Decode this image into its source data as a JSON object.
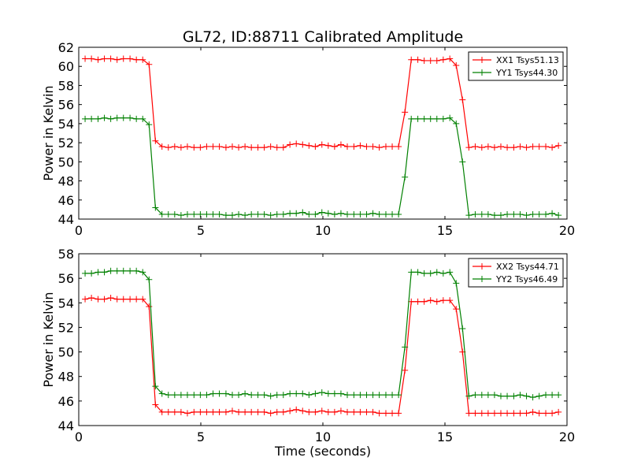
{
  "chart_data": [
    {
      "type": "line",
      "title": "GL72, ID:88711 Calibrated Amplitude",
      "xlabel": "",
      "ylabel": "Power in Kelvin",
      "xlim": [
        0,
        20
      ],
      "ylim": [
        44,
        62
      ],
      "xticks": [
        "0",
        "5",
        "10",
        "15",
        "20"
      ],
      "yticks": [
        "44",
        "46",
        "48",
        "50",
        "52",
        "54",
        "56",
        "58",
        "60",
        "62"
      ],
      "grid": false,
      "legend_position": "top-right",
      "x": [
        0.26,
        0.52,
        0.79,
        1.05,
        1.31,
        1.57,
        1.83,
        2.1,
        2.36,
        2.62,
        2.88,
        3.14,
        3.41,
        3.67,
        3.93,
        4.19,
        4.45,
        4.72,
        4.98,
        5.24,
        5.5,
        5.76,
        6.03,
        6.29,
        6.55,
        6.81,
        7.07,
        7.34,
        7.6,
        7.86,
        8.12,
        8.38,
        8.65,
        8.91,
        9.17,
        9.43,
        9.69,
        9.96,
        10.22,
        10.48,
        10.74,
        11.0,
        11.27,
        11.53,
        11.79,
        12.05,
        12.31,
        12.58,
        12.84,
        13.1,
        13.36,
        13.62,
        13.89,
        14.15,
        14.41,
        14.67,
        14.93,
        15.2,
        15.46,
        15.72,
        15.98,
        16.24,
        16.51,
        16.77,
        17.03,
        17.29,
        17.55,
        17.82,
        18.08,
        18.34,
        18.6,
        18.86,
        19.13,
        19.39,
        19.65
      ],
      "series": [
        {
          "name": "XX1 Tsys51.13",
          "color": "#ff0000",
          "values": [
            60.8,
            60.8,
            60.7,
            60.8,
            60.8,
            60.7,
            60.8,
            60.8,
            60.7,
            60.7,
            60.2,
            52.2,
            51.6,
            51.5,
            51.6,
            51.5,
            51.6,
            51.5,
            51.5,
            51.6,
            51.6,
            51.6,
            51.5,
            51.6,
            51.5,
            51.6,
            51.5,
            51.5,
            51.5,
            51.6,
            51.5,
            51.5,
            51.8,
            51.9,
            51.8,
            51.7,
            51.6,
            51.8,
            51.7,
            51.6,
            51.8,
            51.6,
            51.6,
            51.7,
            51.6,
            51.6,
            51.5,
            51.6,
            51.6,
            51.6,
            55.2,
            60.7,
            60.7,
            60.6,
            60.6,
            60.6,
            60.7,
            60.8,
            60.1,
            56.5,
            51.5,
            51.6,
            51.5,
            51.6,
            51.5,
            51.6,
            51.5,
            51.5,
            51.6,
            51.5,
            51.6,
            51.6,
            51.6,
            51.5,
            51.7
          ]
        },
        {
          "name": "YY1 Tsys44.30",
          "color": "#008000",
          "values": [
            54.5,
            54.5,
            54.5,
            54.6,
            54.5,
            54.6,
            54.6,
            54.6,
            54.5,
            54.5,
            53.9,
            45.2,
            44.5,
            44.5,
            44.5,
            44.4,
            44.5,
            44.5,
            44.5,
            44.5,
            44.5,
            44.5,
            44.4,
            44.4,
            44.5,
            44.4,
            44.5,
            44.5,
            44.5,
            44.4,
            44.5,
            44.5,
            44.6,
            44.6,
            44.7,
            44.5,
            44.5,
            44.7,
            44.6,
            44.5,
            44.6,
            44.5,
            44.5,
            44.5,
            44.5,
            44.6,
            44.5,
            44.5,
            44.5,
            44.5,
            48.4,
            54.5,
            54.5,
            54.5,
            54.5,
            54.5,
            54.5,
            54.6,
            54.0,
            50.0,
            44.4,
            44.5,
            44.5,
            44.5,
            44.4,
            44.4,
            44.5,
            44.5,
            44.5,
            44.4,
            44.5,
            44.5,
            44.5,
            44.6,
            44.4
          ]
        }
      ]
    },
    {
      "type": "line",
      "title": "",
      "xlabel": "Time (seconds)",
      "ylabel": "Power in Kelvin",
      "xlim": [
        0,
        20
      ],
      "ylim": [
        44,
        58
      ],
      "xticks": [
        "0",
        "5",
        "10",
        "15",
        "20"
      ],
      "yticks": [
        "44",
        "46",
        "48",
        "50",
        "52",
        "54",
        "56",
        "58"
      ],
      "grid": false,
      "legend_position": "top-right",
      "x": [
        0.26,
        0.52,
        0.79,
        1.05,
        1.31,
        1.57,
        1.83,
        2.1,
        2.36,
        2.62,
        2.88,
        3.14,
        3.41,
        3.67,
        3.93,
        4.19,
        4.45,
        4.72,
        4.98,
        5.24,
        5.5,
        5.76,
        6.03,
        6.29,
        6.55,
        6.81,
        7.07,
        7.34,
        7.6,
        7.86,
        8.12,
        8.38,
        8.65,
        8.91,
        9.17,
        9.43,
        9.69,
        9.96,
        10.22,
        10.48,
        10.74,
        11.0,
        11.27,
        11.53,
        11.79,
        12.05,
        12.31,
        12.58,
        12.84,
        13.1,
        13.36,
        13.62,
        13.89,
        14.15,
        14.41,
        14.67,
        14.93,
        15.2,
        15.46,
        15.72,
        15.98,
        16.24,
        16.51,
        16.77,
        17.03,
        17.29,
        17.55,
        17.82,
        18.08,
        18.34,
        18.6,
        18.86,
        19.13,
        19.39,
        19.65
      ],
      "series": [
        {
          "name": "XX2 Tsys44.71",
          "color": "#ff0000",
          "values": [
            54.3,
            54.4,
            54.3,
            54.3,
            54.4,
            54.3,
            54.3,
            54.3,
            54.3,
            54.3,
            53.7,
            45.7,
            45.1,
            45.1,
            45.1,
            45.1,
            45.0,
            45.1,
            45.1,
            45.1,
            45.1,
            45.1,
            45.1,
            45.2,
            45.1,
            45.1,
            45.1,
            45.1,
            45.1,
            45.0,
            45.1,
            45.1,
            45.2,
            45.3,
            45.2,
            45.1,
            45.1,
            45.2,
            45.1,
            45.1,
            45.2,
            45.1,
            45.1,
            45.1,
            45.1,
            45.1,
            45.0,
            45.0,
            45.0,
            45.0,
            48.5,
            54.1,
            54.1,
            54.1,
            54.2,
            54.1,
            54.2,
            54.2,
            53.5,
            50.0,
            45.0,
            45.0,
            45.0,
            45.0,
            45.0,
            45.0,
            45.0,
            45.0,
            45.0,
            45.0,
            45.1,
            45.0,
            45.0,
            45.0,
            45.1
          ]
        },
        {
          "name": "YY2 Tsys46.49",
          "color": "#008000",
          "values": [
            56.4,
            56.4,
            56.5,
            56.5,
            56.6,
            56.6,
            56.6,
            56.6,
            56.6,
            56.5,
            55.9,
            47.2,
            46.6,
            46.5,
            46.5,
            46.5,
            46.5,
            46.5,
            46.5,
            46.5,
            46.6,
            46.6,
            46.6,
            46.5,
            46.5,
            46.6,
            46.5,
            46.5,
            46.5,
            46.4,
            46.5,
            46.5,
            46.6,
            46.6,
            46.6,
            46.5,
            46.6,
            46.7,
            46.6,
            46.6,
            46.6,
            46.5,
            46.5,
            46.5,
            46.5,
            46.5,
            46.5,
            46.5,
            46.5,
            46.5,
            50.4,
            56.5,
            56.5,
            56.4,
            56.4,
            56.5,
            56.4,
            56.5,
            55.6,
            51.9,
            46.4,
            46.5,
            46.5,
            46.5,
            46.5,
            46.4,
            46.4,
            46.4,
            46.5,
            46.4,
            46.3,
            46.4,
            46.5,
            46.5,
            46.5
          ]
        }
      ]
    }
  ]
}
